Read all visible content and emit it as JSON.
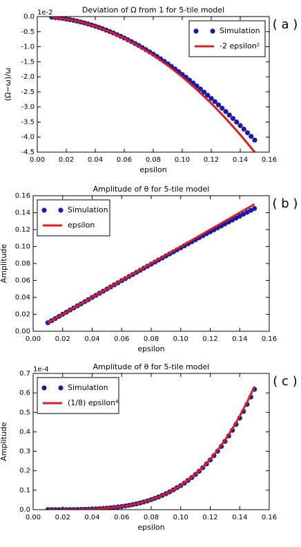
{
  "chart_data": [
    {
      "type": "line",
      "title": "Deviation of Ω from 1 for 5-tile model",
      "xlabel": "epsilon",
      "ylabel": "(Ω−ω)/ω",
      "offset_label": "1e-2",
      "annotation": "( a )",
      "legend": "upper right",
      "xlim": [
        0,
        0.16
      ],
      "xticks": [
        {
          "value": 0,
          "label": "0.00"
        },
        0.02,
        0.04,
        0.06,
        0.08,
        {
          "value": 0.1,
          "label": "0.10"
        },
        0.12,
        0.14,
        0.16
      ],
      "ylim": [
        -4.5,
        0
      ],
      "yticks": [
        {
          "value": 0,
          "label": "0.0"
        },
        -0.5,
        {
          "value": -1,
          "label": "-1.0"
        },
        -1.5,
        {
          "value": -2,
          "label": "-2.0"
        },
        -2.5,
        {
          "value": -3,
          "label": "-3.0"
        },
        -3.5,
        {
          "value": -4,
          "label": "-4.0"
        },
        -4.5
      ],
      "series": [
        {
          "name": "Simulation",
          "color": "#1a1aa8",
          "marker": "o",
          "x": [
            0.01,
            0.0125,
            0.015,
            0.0175,
            0.02,
            0.0225,
            0.025,
            0.0275,
            0.03,
            0.0325,
            0.035,
            0.0375,
            0.04,
            0.0425,
            0.045,
            0.0475,
            0.05,
            0.0525,
            0.055,
            0.0575,
            0.06,
            0.0625,
            0.065,
            0.0675,
            0.07,
            0.0725,
            0.075,
            0.0775,
            0.08,
            0.0825,
            0.085,
            0.0875,
            0.09,
            0.0925,
            0.095,
            0.0975,
            0.1,
            0.1025,
            0.105,
            0.1075,
            0.11,
            0.1125,
            0.115,
            0.1175,
            0.12,
            0.1225,
            0.125,
            0.1275,
            0.13,
            0.1325,
            0.135,
            0.1375,
            0.14,
            0.1425,
            0.145,
            0.1475,
            0.15
          ],
          "values": [
            -0.02,
            -0.031,
            -0.045,
            -0.061,
            -0.08,
            -0.101,
            -0.125,
            -0.151,
            -0.179,
            -0.21,
            -0.244,
            -0.28,
            -0.318,
            -0.359,
            -0.402,
            -0.447,
            -0.495,
            -0.545,
            -0.598,
            -0.653,
            -0.71,
            -0.769,
            -0.831,
            -0.895,
            -0.961,
            -1.029,
            -1.1,
            -1.173,
            -1.248,
            -1.324,
            -1.404,
            -1.485,
            -1.568,
            -1.653,
            -1.741,
            -1.83,
            -1.921,
            -2.014,
            -2.109,
            -2.206,
            -2.304,
            -2.405,
            -2.507,
            -2.61,
            -2.716,
            -2.823,
            -2.932,
            -3.042,
            -3.154,
            -3.268,
            -3.383,
            -3.499,
            -3.617,
            -3.735,
            -3.856,
            -3.977,
            -4.1
          ]
        },
        {
          "name": "-2 epsilon²",
          "color": "#dd1c1c",
          "marker": "line",
          "x": [
            0.01,
            0.02,
            0.03,
            0.04,
            0.05,
            0.06,
            0.07,
            0.08,
            0.09,
            0.1,
            0.11,
            0.12,
            0.13,
            0.14,
            0.15
          ],
          "values": [
            -0.02,
            -0.08,
            -0.18,
            -0.32,
            -0.5,
            -0.72,
            -0.98,
            -1.28,
            -1.62,
            -2.0,
            -2.42,
            -2.88,
            -3.38,
            -3.92,
            -4.5
          ]
        }
      ]
    },
    {
      "type": "line",
      "title": "Amplitude of θ for 5-tile model",
      "xlabel": "epsilon",
      "ylabel": "Amplitude",
      "annotation": "( b )",
      "legend": "upper left",
      "xlim": [
        0,
        0.16
      ],
      "xticks": [
        {
          "value": 0,
          "label": "0.00"
        },
        0.02,
        0.04,
        0.06,
        0.08,
        {
          "value": 0.1,
          "label": "0.10"
        },
        0.12,
        0.14,
        0.16
      ],
      "ylim": [
        0,
        0.16
      ],
      "yticks": [
        {
          "value": 0,
          "label": "0.00"
        },
        0.02,
        0.04,
        0.06,
        0.08,
        {
          "value": 0.1,
          "label": "0.10"
        },
        0.12,
        0.14,
        0.16
      ],
      "series": [
        {
          "name": "Simulation",
          "color": "#1a1aa8",
          "marker": "o",
          "x": [
            0.01,
            0.0125,
            0.015,
            0.0175,
            0.02,
            0.0225,
            0.025,
            0.0275,
            0.03,
            0.0325,
            0.035,
            0.0375,
            0.04,
            0.0425,
            0.045,
            0.0475,
            0.05,
            0.0525,
            0.055,
            0.0575,
            0.06,
            0.0625,
            0.065,
            0.0675,
            0.07,
            0.0725,
            0.075,
            0.0775,
            0.08,
            0.0825,
            0.085,
            0.0875,
            0.09,
            0.0925,
            0.095,
            0.0975,
            0.1,
            0.1025,
            0.105,
            0.1075,
            0.11,
            0.1125,
            0.115,
            0.1175,
            0.12,
            0.1225,
            0.125,
            0.1275,
            0.13,
            0.1325,
            0.135,
            0.1375,
            0.14,
            0.1425,
            0.145,
            0.1475,
            0.15
          ],
          "values": [
            0.01,
            0.0125,
            0.015,
            0.0175,
            0.02,
            0.0225,
            0.025,
            0.0275,
            0.03,
            0.0324,
            0.0349,
            0.0374,
            0.0399,
            0.0424,
            0.0449,
            0.0473,
            0.0498,
            0.0523,
            0.0548,
            0.0572,
            0.0597,
            0.0621,
            0.0646,
            0.067,
            0.0695,
            0.0719,
            0.0744,
            0.0768,
            0.0792,
            0.0817,
            0.0841,
            0.0865,
            0.0889,
            0.0913,
            0.0937,
            0.0961,
            0.0985,
            0.1009,
            0.1033,
            0.1056,
            0.108,
            0.1104,
            0.1127,
            0.1151,
            0.1174,
            0.1197,
            0.1221,
            0.1244,
            0.1267,
            0.129,
            0.1313,
            0.1336,
            0.1359,
            0.1382,
            0.1404,
            0.1427,
            0.1449
          ]
        },
        {
          "name": "epsilon",
          "color": "#dd1c1c",
          "marker": "line",
          "x": [
            0.01,
            0.15
          ],
          "values": [
            0.01,
            0.15
          ]
        }
      ]
    },
    {
      "type": "line",
      "title": "Amplitude of θ for 5-tile model",
      "xlabel": "epsilon",
      "ylabel": "Amplitude",
      "offset_label": "1e-4",
      "annotation": "( c )",
      "legend": "upper left",
      "xlim": [
        0,
        0.16
      ],
      "xticks": [
        {
          "value": 0,
          "label": "0.00"
        },
        0.02,
        0.04,
        0.06,
        0.08,
        {
          "value": 0.1,
          "label": "0.10"
        },
        0.12,
        0.14,
        0.16
      ],
      "ylim": [
        0,
        0.7
      ],
      "yticks": [
        {
          "value": 0,
          "label": "0.0"
        },
        0.1,
        0.2,
        0.3,
        0.4,
        0.5,
        0.6,
        0.7
      ],
      "series": [
        {
          "name": "Simulation",
          "color": "#1a1aa8",
          "marker": "o",
          "x": [
            0.01,
            0.0125,
            0.015,
            0.0175,
            0.02,
            0.0225,
            0.025,
            0.0275,
            0.03,
            0.0325,
            0.035,
            0.0375,
            0.04,
            0.0425,
            0.045,
            0.0475,
            0.05,
            0.0525,
            0.055,
            0.0575,
            0.06,
            0.0625,
            0.065,
            0.0675,
            0.07,
            0.0725,
            0.075,
            0.0775,
            0.08,
            0.0825,
            0.085,
            0.0875,
            0.09,
            0.0925,
            0.095,
            0.0975,
            0.1,
            0.1025,
            0.105,
            0.1075,
            0.11,
            0.1125,
            0.115,
            0.1175,
            0.12,
            0.1225,
            0.125,
            0.1275,
            0.13,
            0.1325,
            0.135,
            0.1375,
            0.14,
            0.1425,
            0.145,
            0.1475,
            0.15
          ],
          "values": [
            0,
            0,
            0.0001,
            0.0001,
            0.0002,
            0.0003,
            0.0005,
            0.0007,
            0.001,
            0.0014,
            0.0019,
            0.0025,
            0.0032,
            0.0041,
            0.0051,
            0.0064,
            0.0078,
            0.0095,
            0.0114,
            0.0137,
            0.0162,
            0.0191,
            0.0223,
            0.0259,
            0.03,
            0.0345,
            0.0396,
            0.0451,
            0.0512,
            0.0579,
            0.0653,
            0.0733,
            0.082,
            0.0915,
            0.1018,
            0.113,
            0.1238,
            0.1366,
            0.1502,
            0.165,
            0.1808,
            0.1977,
            0.2157,
            0.235,
            0.2555,
            0.2773,
            0.3004,
            0.3249,
            0.351,
            0.3785,
            0.4076,
            0.4384,
            0.4708,
            0.5049,
            0.541,
            0.5788,
            0.6186
          ]
        },
        {
          "name": "(1/8) epsilon⁴",
          "color": "#dd1c1c",
          "marker": "line",
          "x": [
            0.01,
            0.015,
            0.02,
            0.025,
            0.03,
            0.035,
            0.04,
            0.045,
            0.05,
            0.055,
            0.06,
            0.065,
            0.07,
            0.075,
            0.08,
            0.085,
            0.09,
            0.095,
            0.1,
            0.105,
            0.11,
            0.115,
            0.12,
            0.125,
            0.13,
            0.135,
            0.14,
            0.145,
            0.15
          ],
          "values": [
            0,
            0.0001,
            0.0002,
            0.0005,
            0.001,
            0.0019,
            0.0032,
            0.0051,
            0.0078,
            0.0114,
            0.0162,
            0.0223,
            0.03,
            0.0396,
            0.0512,
            0.0653,
            0.082,
            0.1018,
            0.125,
            0.1519,
            0.183,
            0.2186,
            0.2592,
            0.3052,
            0.357,
            0.4152,
            0.4802,
            0.5526,
            0.6328
          ]
        }
      ]
    }
  ]
}
